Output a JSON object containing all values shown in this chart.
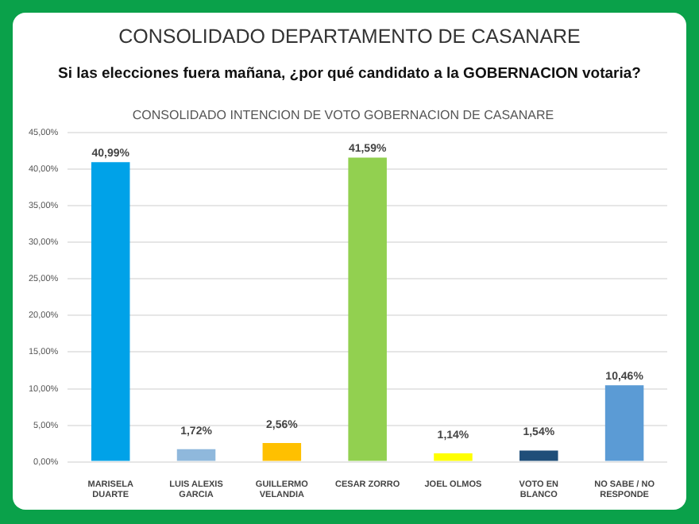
{
  "chart_data": {
    "type": "bar",
    "title": "CONSOLIDADO DEPARTAMENTO DE CASANARE",
    "subtitle": "Si las elecciones fuera mañana, ¿por qué candidato a la GOBERNACION votaria?",
    "annotations": [
      "CONSOLIDADO INTENCION DE VOTO GOBERNACION DE CASANARE"
    ],
    "categories": [
      "MARISELA DUARTE",
      "LUIS ALEXIS GARCIA",
      "GUILLERMO VELANDIA",
      "CESAR ZORRO",
      "JOEL OLMOS",
      "VOTO EN BLANCO",
      "NO SABE / NO RESPONDE"
    ],
    "values": [
      40.99,
      1.72,
      2.56,
      41.59,
      1.14,
      1.54,
      10.46
    ],
    "colors": [
      "#00a2e8",
      "#8fb8dc",
      "#ffc000",
      "#92d050",
      "#ffff00",
      "#1f4e79",
      "#5b9bd5"
    ],
    "value_labels": [
      "40,99%",
      "1,72%",
      "2,56%",
      "41,59%",
      "1,14%",
      "1,54%",
      "10,46%"
    ],
    "ylim": [
      0,
      45
    ],
    "yticks": [
      {
        "value": 0,
        "label": "0,00%"
      },
      {
        "value": 5,
        "label": "5,00%"
      },
      {
        "value": 10,
        "label": "10,00%"
      },
      {
        "value": 15,
        "label": "15,00%"
      },
      {
        "value": 20,
        "label": "20,00%"
      },
      {
        "value": 25,
        "label": "25,00%"
      },
      {
        "value": 30,
        "label": "30,00%"
      },
      {
        "value": 35,
        "label": "35,00%"
      },
      {
        "value": 40,
        "label": "40,00%"
      },
      {
        "value": 45,
        "label": "45,00%"
      }
    ],
    "grid": "y"
  }
}
